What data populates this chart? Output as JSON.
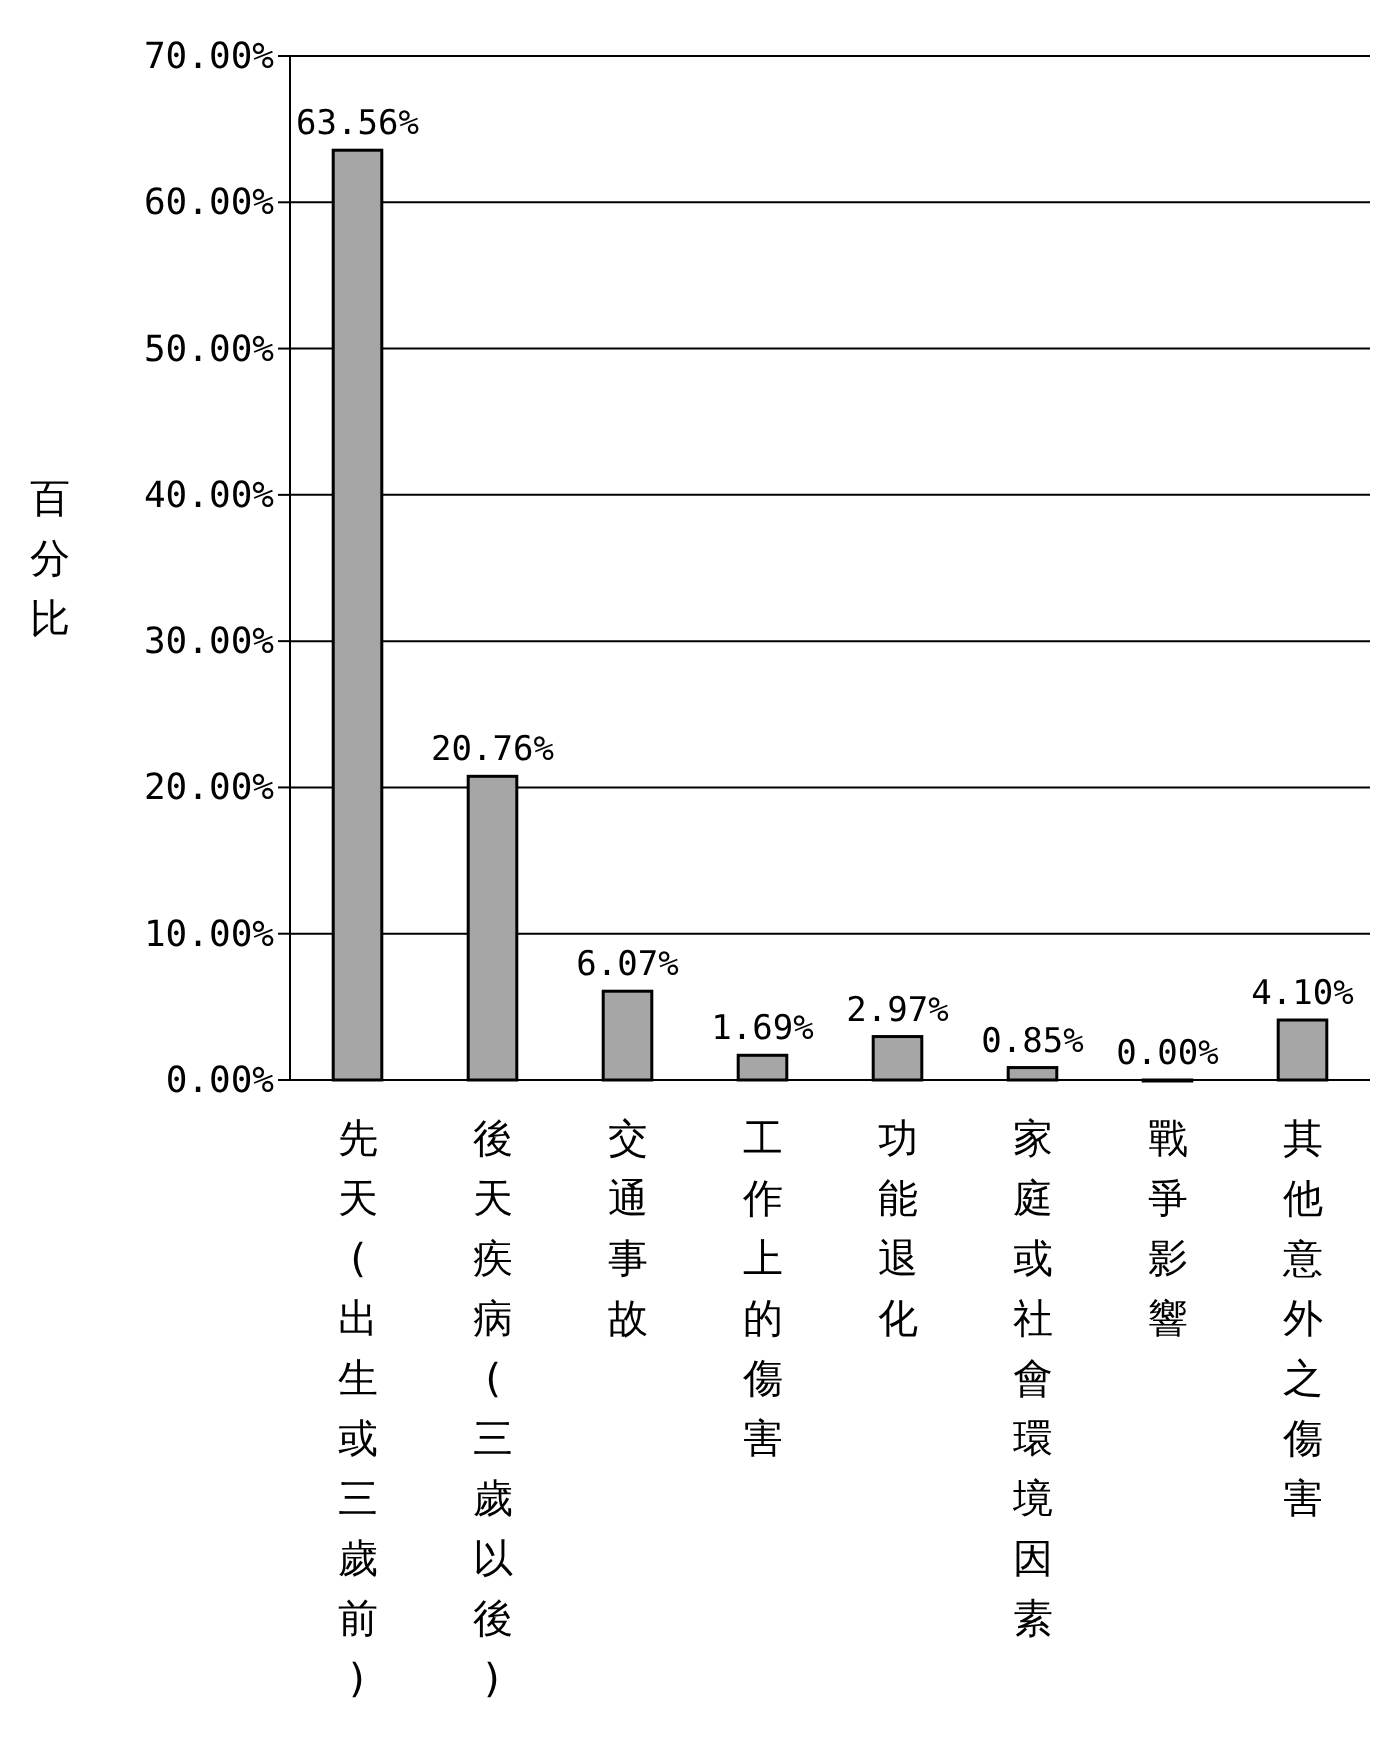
{
  "chart_data": {
    "type": "bar",
    "ylabel": "百分比",
    "categories": [
      "先天(出生或三歲前)",
      "後天疾病(三歲以後)",
      "交通事故",
      "工作上的傷害",
      "功能退化",
      "家庭或社會環境因素",
      "戰爭影響",
      "其他意外之傷害"
    ],
    "values": [
      63.56,
      20.76,
      6.07,
      1.69,
      2.97,
      0.85,
      0.0,
      4.1
    ],
    "value_labels": [
      "63.56%",
      "20.76%",
      "6.07%",
      "1.69%",
      "2.97%",
      "0.85%",
      "0.00%",
      "4.10%"
    ],
    "color": "#a6a6a6",
    "ylim": [
      0,
      70
    ],
    "yticks": [
      {
        "value": 0,
        "label": "0.00%"
      },
      {
        "value": 10,
        "label": "10.00%"
      },
      {
        "value": 20,
        "label": "20.00%"
      },
      {
        "value": 30,
        "label": "30.00%"
      },
      {
        "value": 40,
        "label": "40.00%"
      },
      {
        "value": 50,
        "label": "50.00%"
      },
      {
        "value": 60,
        "label": "60.00%"
      },
      {
        "value": 70,
        "label": "70.00%"
      }
    ],
    "grid": true
  }
}
